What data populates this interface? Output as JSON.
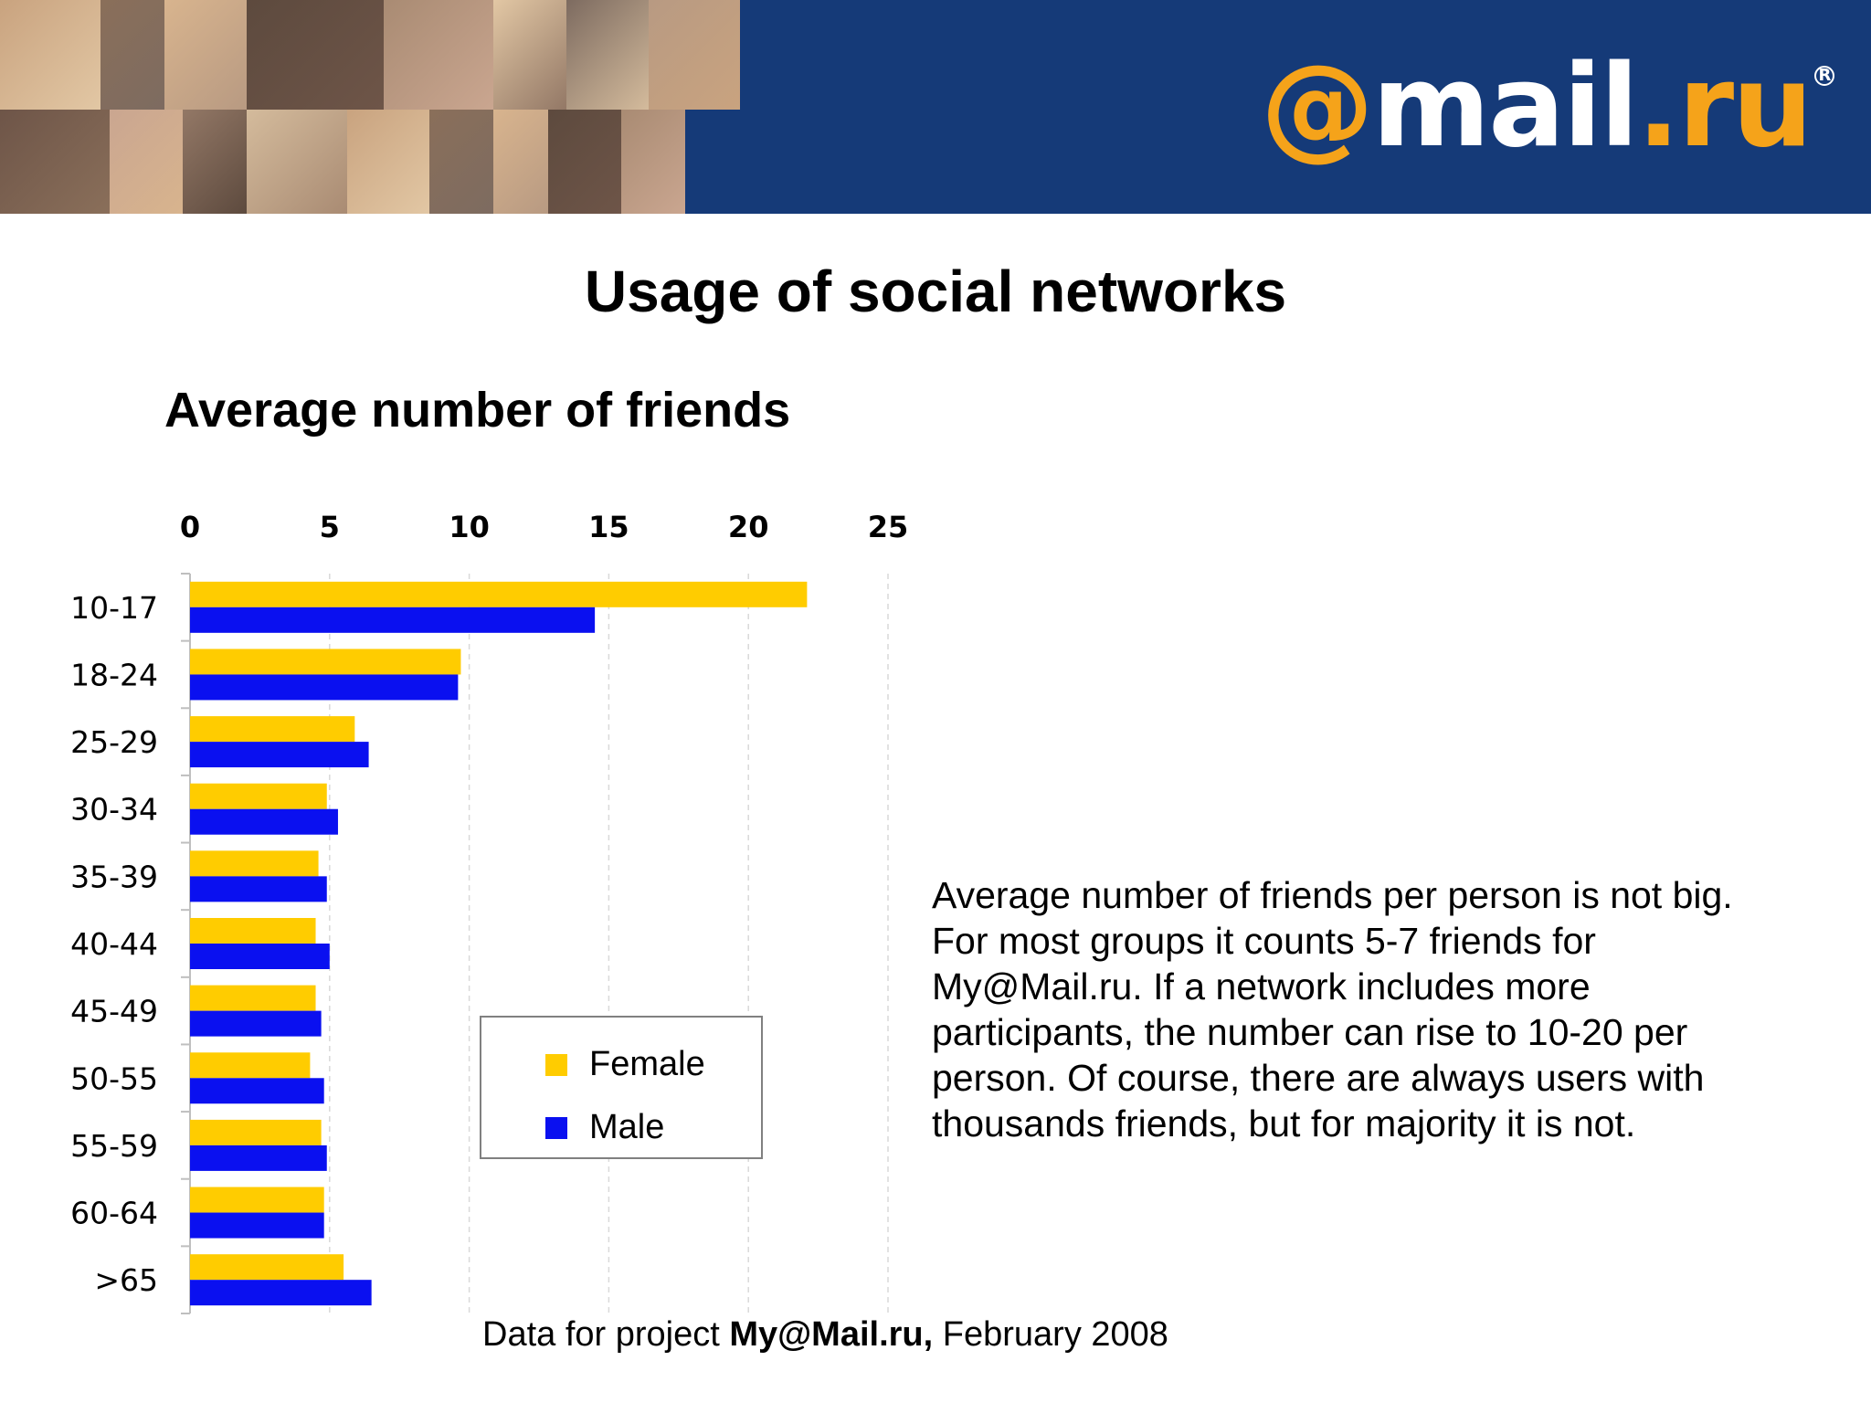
{
  "header": {
    "logo": {
      "at": "@",
      "mail": "mail",
      "dot": ".",
      "ru": "ru",
      "reg": "R"
    },
    "colors": {
      "banner": "#153a78",
      "logo_accent": "#f5a31a"
    }
  },
  "page_title": "Usage of social networks",
  "note_lines": [
    "Average number of friends per person is not big.",
    "For most groups it counts 5-7 friends for",
    "My@Mail.ru.  If a network includes more",
    "participants, the number can rise to 10-20 per",
    "person. Of course,  there are always users with",
    "thousands  friends,  but  for  majority it is not."
  ],
  "footer": {
    "prefix": "Data for project ",
    "project": "My@Mail.ru,",
    "date": " February 2008"
  },
  "chart_data": {
    "type": "bar",
    "orientation": "horizontal",
    "title": "Average number of friends",
    "xlabel": "",
    "ylabel": "",
    "xlim": [
      0,
      25
    ],
    "x_ticks": [
      0,
      5,
      10,
      15,
      20,
      25
    ],
    "x_axis_position": "top",
    "grid": true,
    "legend_position": "center",
    "categories": [
      "10-17",
      "18-24",
      "25-29",
      "30-34",
      "35-39",
      "40-44",
      "45-49",
      "50-55",
      "55-59",
      "60-64",
      ">65"
    ],
    "series": [
      {
        "name": "Female",
        "color": "#ffcc00",
        "values": [
          22.1,
          9.7,
          5.9,
          4.9,
          4.6,
          4.5,
          4.5,
          4.3,
          4.7,
          4.8,
          5.5
        ]
      },
      {
        "name": "Male",
        "color": "#0a10f0",
        "values": [
          14.5,
          9.6,
          6.4,
          5.3,
          4.9,
          5.0,
          4.7,
          4.8,
          4.9,
          4.8,
          6.5
        ]
      }
    ]
  }
}
